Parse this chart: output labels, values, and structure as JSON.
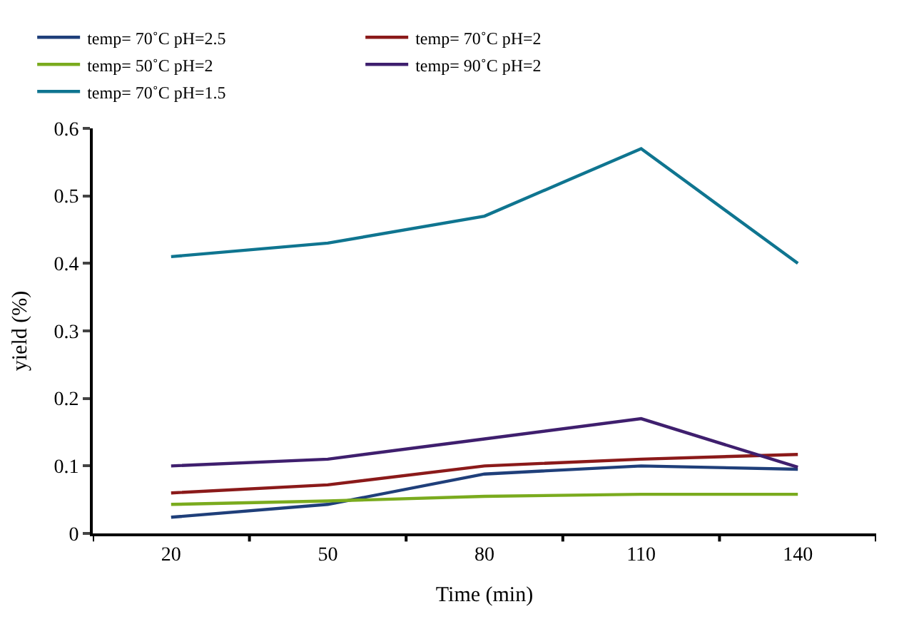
{
  "chart_data": {
    "type": "line",
    "xlabel": "Time (min)",
    "ylabel": "yield (%)",
    "categories": [
      "20",
      "50",
      "80",
      "110",
      "140"
    ],
    "series": [
      {
        "name": "temp= 70˚C pH=2.5",
        "color": "#1f3f7a",
        "values": [
          0.024,
          0.043,
          0.088,
          0.1,
          0.095
        ]
      },
      {
        "name": "temp= 70˚C pH=2",
        "color": "#8b1a1a",
        "values": [
          0.06,
          0.072,
          0.1,
          0.11,
          0.117
        ]
      },
      {
        "name": "temp= 50˚C pH=2",
        "color": "#7aab1e",
        "values": [
          0.043,
          0.048,
          0.055,
          0.058,
          0.058
        ]
      },
      {
        "name": "temp= 90˚C pH=2",
        "color": "#3f1f6e",
        "values": [
          0.1,
          0.11,
          0.14,
          0.17,
          0.098
        ]
      },
      {
        "name": "temp= 70˚C pH=1.5",
        "color": "#0f7590",
        "values": [
          0.41,
          0.43,
          0.47,
          0.57,
          0.4
        ]
      }
    ],
    "ylim": [
      0,
      0.6
    ],
    "yticks": [
      0,
      0.1,
      0.2,
      0.3,
      0.4,
      0.5,
      0.6
    ],
    "legend": "top",
    "marker": "none",
    "line_style": "solid"
  }
}
